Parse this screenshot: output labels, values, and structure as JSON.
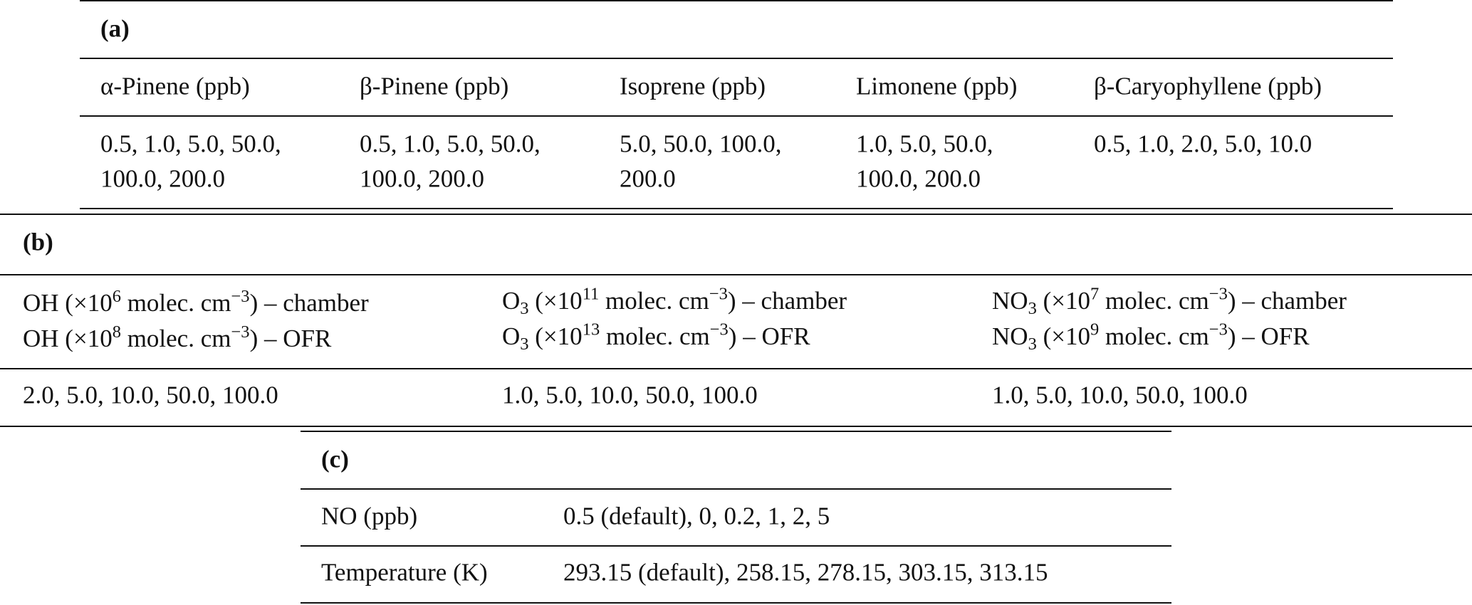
{
  "tables": [
    {
      "label": "(a)",
      "header": [
        [
          "α-Pinene (ppb)"
        ],
        [
          "β-Pinene (ppb)"
        ],
        [
          "Isoprene (ppb)"
        ],
        [
          "Limonene (ppb)"
        ],
        [
          "β-Caryophyllene (ppb)"
        ]
      ],
      "rows": [
        [
          [
            "0.5, 1.0, 5.0, 50.0,",
            "100.0, 200.0"
          ],
          [
            "0.5, 1.0, 5.0, 50.0,",
            "100.0, 200.0"
          ],
          [
            "5.0, 50.0, 100.0,",
            "200.0"
          ],
          [
            "1.0, 5.0, 50.0,",
            "100.0, 200.0"
          ],
          [
            "0.5, 1.0, 2.0, 5.0, 10.0"
          ]
        ]
      ]
    },
    {
      "label": "(b)",
      "header": [
        [
          [
            {
              "text": "OH (×10"
            },
            {
              "text": "6",
              "style": "sup"
            },
            {
              "text": " molec. cm"
            },
            {
              "text": "−3",
              "style": "sup"
            },
            {
              "text": ") – chamber"
            }
          ],
          [
            {
              "text": "OH (×10"
            },
            {
              "text": "8",
              "style": "sup"
            },
            {
              "text": " molec. cm"
            },
            {
              "text": "−3",
              "style": "sup"
            },
            {
              "text": ") – OFR"
            }
          ]
        ],
        [
          [
            {
              "text": "O"
            },
            {
              "text": "3",
              "style": "sub"
            },
            {
              "text": " (×10"
            },
            {
              "text": "11",
              "style": "sup"
            },
            {
              "text": " molec. cm"
            },
            {
              "text": "−3",
              "style": "sup"
            },
            {
              "text": ") – chamber"
            }
          ],
          [
            {
              "text": "O"
            },
            {
              "text": "3",
              "style": "sub"
            },
            {
              "text": " (×10"
            },
            {
              "text": "13",
              "style": "sup"
            },
            {
              "text": " molec. cm"
            },
            {
              "text": "−3",
              "style": "sup"
            },
            {
              "text": ") – OFR"
            }
          ]
        ],
        [
          [
            {
              "text": "NO"
            },
            {
              "text": "3",
              "style": "sub"
            },
            {
              "text": " (×10"
            },
            {
              "text": "7",
              "style": "sup"
            },
            {
              "text": " molec. cm"
            },
            {
              "text": "−3",
              "style": "sup"
            },
            {
              "text": ") – chamber"
            }
          ],
          [
            {
              "text": "NO"
            },
            {
              "text": "3",
              "style": "sub"
            },
            {
              "text": " (×10"
            },
            {
              "text": "9",
              "style": "sup"
            },
            {
              "text": " molec. cm"
            },
            {
              "text": "−3",
              "style": "sup"
            },
            {
              "text": ") – OFR"
            }
          ]
        ]
      ],
      "rows": [
        [
          [
            "2.0, 5.0, 10.0, 50.0, 100.0"
          ],
          [
            "1.0, 5.0, 10.0, 50.0, 100.0"
          ],
          [
            "1.0, 5.0, 10.0, 50.0, 100.0"
          ]
        ]
      ]
    },
    {
      "label": "(c)",
      "rows": [
        [
          [
            "NO (ppb)"
          ],
          [
            "0.5 (default), 0, 0.2, 1, 2, 5"
          ]
        ],
        [
          [
            "Temperature (K)"
          ],
          [
            "293.15 (default), 258.15, 278.15, 303.15, 313.15"
          ]
        ]
      ]
    }
  ]
}
